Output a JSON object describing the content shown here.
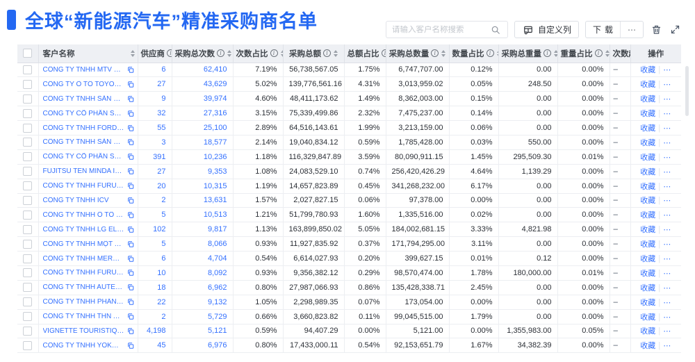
{
  "page": {
    "title": "全球“新能源汽车”精准采购商名单"
  },
  "colors": {
    "accent_blue": "#2468f2",
    "link_blue": "#3370ff",
    "header_bg": "#eef0f4"
  },
  "toolbar": {
    "search_placeholder": "请输入客户名称搜索",
    "customize_columns_label": "自定义列",
    "download_label": "下载",
    "more_label": "⋯"
  },
  "table": {
    "columns": [
      {
        "key": "name",
        "label": "客户名称",
        "info": false,
        "sortable": true
      },
      {
        "key": "supplier",
        "label": "供应商",
        "info": true,
        "sortable": true
      },
      {
        "key": "times",
        "label": "采购总次数",
        "info": true,
        "sortable": true
      },
      {
        "key": "times_pct",
        "label": "次数占比",
        "info": true,
        "sortable": true
      },
      {
        "key": "amount",
        "label": "采购总额",
        "info": true,
        "sortable": true
      },
      {
        "key": "amount_pct",
        "label": "总额占比",
        "info": true,
        "sortable": true
      },
      {
        "key": "quantity",
        "label": "采购总数量",
        "info": true,
        "sortable": true
      },
      {
        "key": "quantity_pct",
        "label": "数量占比",
        "info": true,
        "sortable": true
      },
      {
        "key": "weight",
        "label": "采购总重量",
        "info": true,
        "sortable": true
      },
      {
        "key": "weight_pct",
        "label": "重量占比",
        "info": true,
        "sortable": true
      },
      {
        "key": "trend",
        "label": "次数趋势",
        "info": false,
        "sortable": false
      },
      {
        "key": "actions",
        "label": "操作",
        "info": false,
        "sortable": false
      }
    ],
    "trend_placeholder": "–",
    "actions": {
      "favorite_label": "收藏",
      "more_label": "⋯"
    },
    "rows": [
      {
        "name": "CÔNG TY TNHH MTV SẢN XUẤ...",
        "supplier": "6",
        "times": "62,410",
        "times_pct": "7.19%",
        "amount": "56,738,567.05",
        "amount_pct": "1.75%",
        "quantity": "6,747,707.00",
        "quantity_pct": "0.12%",
        "weight": "0.00",
        "weight_pct": "0.00%"
      },
      {
        "name": "CÔNG TY Ô TÔ TOYOTA VIỆT ...",
        "supplier": "27",
        "times": "43,629",
        "times_pct": "5.02%",
        "amount": "139,776,561.16",
        "amount_pct": "4.31%",
        "quantity": "3,013,959.02",
        "quantity_pct": "0.05%",
        "weight": "248.50",
        "weight_pct": "0.00%"
      },
      {
        "name": "CÔNG TY TNHH SẢN XUẤT VÀ ...",
        "supplier": "9",
        "times": "39,974",
        "times_pct": "4.60%",
        "amount": "48,411,173.62",
        "amount_pct": "1.49%",
        "quantity": "8,362,003.00",
        "quantity_pct": "0.15%",
        "weight": "0.00",
        "weight_pct": "0.00%"
      },
      {
        "name": "CÔNG TY CỔ PHẦN SẢN XUẤT...",
        "supplier": "32",
        "times": "27,316",
        "times_pct": "3.15%",
        "amount": "75,339,499.86",
        "amount_pct": "2.32%",
        "quantity": "7,475,237.00",
        "quantity_pct": "0.14%",
        "weight": "0.00",
        "weight_pct": "0.00%"
      },
      {
        "name": "CÔNG TY TNHH FORD VIỆT NAM",
        "supplier": "55",
        "times": "25,100",
        "times_pct": "2.89%",
        "amount": "64,516,143.61",
        "amount_pct": "1.99%",
        "quantity": "3,213,159.00",
        "quantity_pct": "0.06%",
        "weight": "0.00",
        "weight_pct": "0.00%"
      },
      {
        "name": "CÔNG TY TNHH SẢN XUẤT VÀ ...",
        "supplier": "3",
        "times": "18,577",
        "times_pct": "2.14%",
        "amount": "19,040,834.12",
        "amount_pct": "0.59%",
        "quantity": "1,785,428.00",
        "quantity_pct": "0.03%",
        "weight": "550.00",
        "weight_pct": "0.00%"
      },
      {
        "name": "CÔNG TY CỔ PHẦN SẢN XUẤT...",
        "supplier": "391",
        "times": "10,236",
        "times_pct": "1.18%",
        "amount": "116,329,847.89",
        "amount_pct": "3.59%",
        "quantity": "80,090,911.15",
        "quantity_pct": "1.45%",
        "weight": "295,509.30",
        "weight_pct": "0.01%"
      },
      {
        "name": "FUJITSU TEN MINDA INDIA PVT...",
        "supplier": "27",
        "times": "9,353",
        "times_pct": "1.08%",
        "amount": "24,083,529.10",
        "amount_pct": "0.74%",
        "quantity": "256,420,426.29",
        "quantity_pct": "4.64%",
        "weight": "1,139.29",
        "weight_pct": "0.00%"
      },
      {
        "name": "CÔNG TY TNHH FURUKAWA A...",
        "supplier": "20",
        "times": "10,315",
        "times_pct": "1.19%",
        "amount": "14,657,823.89",
        "amount_pct": "0.45%",
        "quantity": "341,268,232.00",
        "quantity_pct": "6.17%",
        "weight": "0.00",
        "weight_pct": "0.00%"
      },
      {
        "name": "CÔNG TY TNHH ICV",
        "supplier": "2",
        "times": "13,631",
        "times_pct": "1.57%",
        "amount": "2,027,827.15",
        "amount_pct": "0.06%",
        "quantity": "97,378.00",
        "quantity_pct": "0.00%",
        "weight": "0.00",
        "weight_pct": "0.00%"
      },
      {
        "name": "CÔNG TY TNHH Ô TÔ MITSUBI...",
        "supplier": "5",
        "times": "10,513",
        "times_pct": "1.21%",
        "amount": "51,799,780.93",
        "amount_pct": "1.60%",
        "quantity": "1,335,516.00",
        "quantity_pct": "0.02%",
        "weight": "0.00",
        "weight_pct": "0.00%"
      },
      {
        "name": "CÔNG TY TNHH LG ELECTRON...",
        "supplier": "102",
        "times": "9,817",
        "times_pct": "1.13%",
        "amount": "163,899,850.02",
        "amount_pct": "5.05%",
        "quantity": "184,002,681.15",
        "quantity_pct": "3.33%",
        "weight": "4,821.98",
        "weight_pct": "0.00%"
      },
      {
        "name": "CÔNG TY TNHH MỘT THÀNH V...",
        "supplier": "5",
        "times": "8,066",
        "times_pct": "0.93%",
        "amount": "11,927,835.92",
        "amount_pct": "0.37%",
        "quantity": "171,794,295.00",
        "quantity_pct": "3.11%",
        "weight": "0.00",
        "weight_pct": "0.00%"
      },
      {
        "name": "CÔNG TY TNHH MERCEDES-B...",
        "supplier": "6",
        "times": "4,704",
        "times_pct": "0.54%",
        "amount": "6,614,027.93",
        "amount_pct": "0.20%",
        "quantity": "399,627.15",
        "quantity_pct": "0.01%",
        "weight": "0.12",
        "weight_pct": "0.00%"
      },
      {
        "name": "CÔNG TY TNHH FURUKAWA A...",
        "supplier": "10",
        "times": "8,092",
        "times_pct": "0.93%",
        "amount": "9,356,382.12",
        "amount_pct": "0.29%",
        "quantity": "98,570,474.00",
        "quantity_pct": "1.78%",
        "weight": "180,000.00",
        "weight_pct": "0.01%"
      },
      {
        "name": "CÔNG TY TNHH AUTEL VIỆT N...",
        "supplier": "18",
        "times": "6,962",
        "times_pct": "0.80%",
        "amount": "27,987,066.93",
        "amount_pct": "0.86%",
        "quantity": "135,428,338.71",
        "quantity_pct": "2.45%",
        "weight": "0.00",
        "weight_pct": "0.00%"
      },
      {
        "name": "CÔNG TY TNHH PHÂN PHỐI T...",
        "supplier": "22",
        "times": "9,132",
        "times_pct": "1.05%",
        "amount": "2,298,989.35",
        "amount_pct": "0.07%",
        "quantity": "173,054.00",
        "quantity_pct": "0.00%",
        "weight": "0.00",
        "weight_pct": "0.00%"
      },
      {
        "name": "CÔNG TY TNHH THN AUTOPAR...",
        "supplier": "2",
        "times": "5,729",
        "times_pct": "0.66%",
        "amount": "3,660,823.82",
        "amount_pct": "0.11%",
        "quantity": "99,045,515.00",
        "quantity_pct": "1.79%",
        "weight": "0.00",
        "weight_pct": "0.00%"
      },
      {
        "name": "VIGNETTE TOURISTIQUE G UNI...",
        "supplier": "4,198",
        "times": "5,121",
        "times_pct": "0.59%",
        "amount": "94,407.29",
        "amount_pct": "0.00%",
        "quantity": "5,121.00",
        "quantity_pct": "0.00%",
        "weight": "1,355,983.00",
        "weight_pct": "0.05%"
      },
      {
        "name": "CÔNG TY TNHH YOKOWO VIỆT...",
        "supplier": "45",
        "times": "6,976",
        "times_pct": "0.80%",
        "amount": "17,433,000.11",
        "amount_pct": "0.54%",
        "quantity": "92,153,651.79",
        "quantity_pct": "1.67%",
        "weight": "34,382.39",
        "weight_pct": "0.00%"
      }
    ]
  }
}
